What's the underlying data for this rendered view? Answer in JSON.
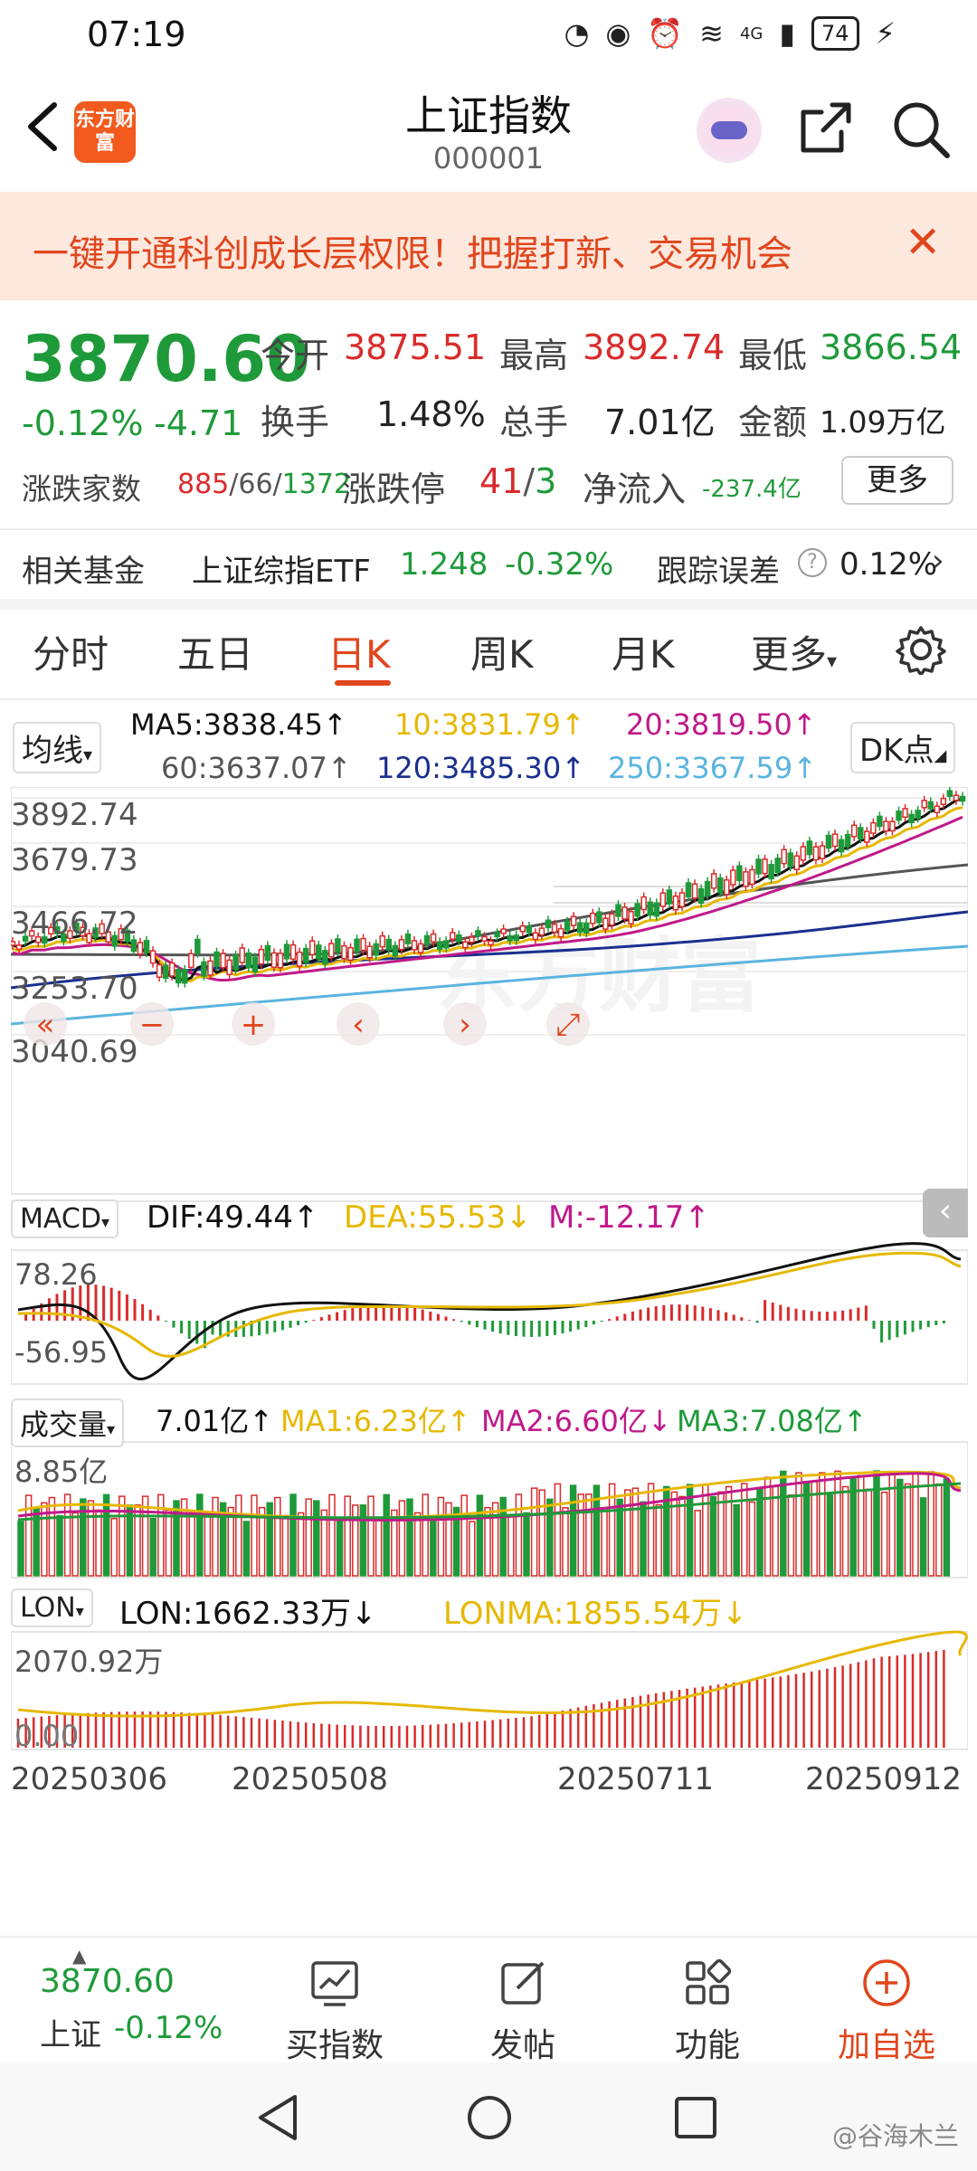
{
  "status_bar": {
    "time": "07:19",
    "battery": "74",
    "network": "4G"
  },
  "header": {
    "title": "上证指数",
    "code": "000001",
    "logo_text": "东方财富"
  },
  "banner": {
    "text": "一键开通科创成长层权限！把握打新、交易机会"
  },
  "quote": {
    "price": "3870.60",
    "change_pct": "-0.12%",
    "change": "-4.71",
    "open_label": "今开",
    "open": "3875.51",
    "high_label": "最高",
    "high": "3892.74",
    "low_label": "最低",
    "low": "3866.54",
    "turnover_label": "换手",
    "turnover": "1.48%",
    "volume_label": "总手",
    "volume": "7.01亿",
    "amount_label": "金额",
    "amount": "1.09万亿",
    "breadth_label": "涨跌家数",
    "breadth_up": "885",
    "breadth_flat": "/66/",
    "breadth_down": "1372",
    "limit_label": "涨跌停",
    "limit_up": "41",
    "limit_down": "3",
    "limit_sep": "/",
    "inflow_label": "净流入",
    "inflow": "-237.4亿",
    "more": "更多"
  },
  "fund": {
    "label": "相关基金",
    "name": "上证综指ETF",
    "price": "1.248",
    "change": "-0.32%",
    "tracking_label": "跟踪误差",
    "tracking": "0.12%"
  },
  "tabs": [
    "分时",
    "五日",
    "日K",
    "周K",
    "月K",
    "更多"
  ],
  "active_tab": "日K",
  "ma_legend": {
    "selector": "均线",
    "ma5": "MA5:3838.45↑",
    "ma10": "10:3831.79↑",
    "ma20": "20:3819.50↑",
    "ma60": "60:3637.07↑",
    "ma120": "120:3485.30↑",
    "ma250": "250:3367.59↑",
    "dk": "DK点"
  },
  "colors": {
    "ma5": "#111111",
    "ma10": "#e6b800",
    "ma20": "#c0198a",
    "ma60": "#555555",
    "ma120": "#1a2f8f",
    "ma250": "#5ab4e0",
    "up": "#d92b2b",
    "down": "#1f9a3a",
    "accent": "#e0461d"
  },
  "kline": {
    "y_labels": [
      "3892.74",
      "3679.73",
      "3466.72",
      "3253.70",
      "3040.69"
    ],
    "watermark": "东方财富",
    "controls": [
      "«",
      "−",
      "+",
      "‹",
      "›",
      "⤢"
    ]
  },
  "macd": {
    "selector": "MACD",
    "dif": "DIF:49.44↑",
    "dea": "DEA:55.53↓",
    "m": "M:-12.17↑",
    "y_top": "78.26",
    "y_bottom": "-56.95"
  },
  "volume": {
    "selector": "成交量",
    "value": "7.01亿↑",
    "ma1": "MA1:6.23亿↑",
    "ma2": "MA2:6.60亿↓",
    "ma3": "MA3:7.08亿↑",
    "y_top": "8.85亿"
  },
  "lon": {
    "selector": "LON",
    "lon": "LON:1662.33万↓",
    "lonma": "LONMA:1855.54万↓",
    "y_top": "2070.92万",
    "y_bottom": "0.00"
  },
  "dates": [
    "20250306",
    "20250508",
    "20250711",
    "20250912"
  ],
  "bottom_bar": {
    "index_price": "3870.60",
    "index_name": "上证",
    "index_change": "-0.12%",
    "items": [
      "买指数",
      "发帖",
      "功能",
      "加自选"
    ]
  },
  "watermark_text": "@谷海木兰"
}
